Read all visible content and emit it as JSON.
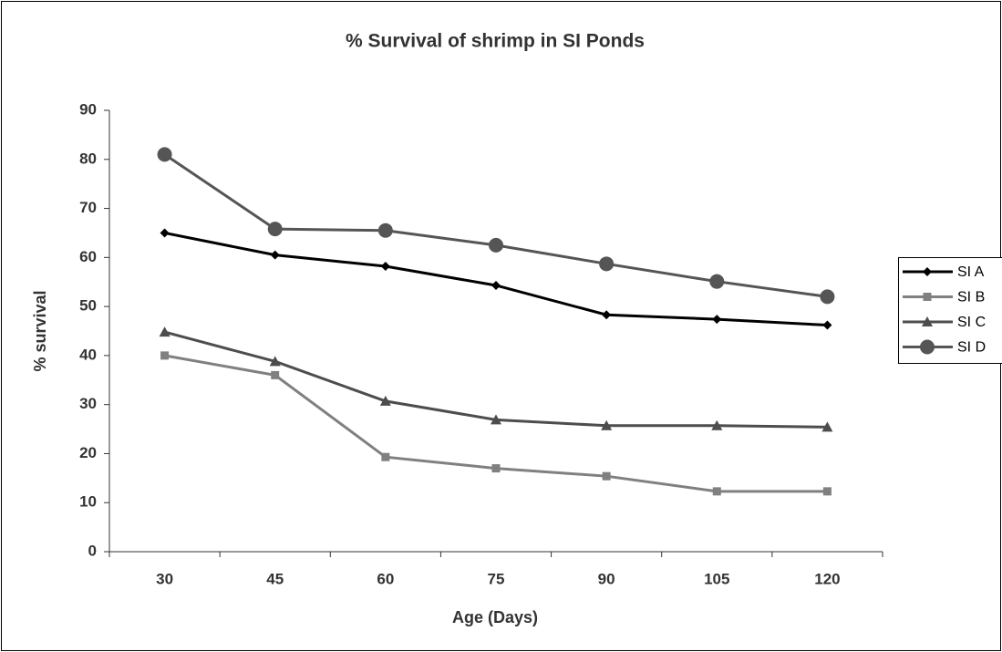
{
  "chart_data": {
    "type": "line",
    "title": "% Survival  of shrimp in SI Ponds",
    "x_label": "Age (Days)",
    "y_label": "% survival",
    "categories": [
      "30",
      "45",
      "60",
      "75",
      "90",
      "105",
      "120"
    ],
    "series": [
      {
        "name": "SI A",
        "color": "#000000",
        "marker": "diamond",
        "values": [
          65,
          60.5,
          58.2,
          54.3,
          48.3,
          47.4,
          46.2
        ]
      },
      {
        "name": "SI B",
        "color": "#808080",
        "marker": "square",
        "values": [
          40,
          36,
          19.3,
          17,
          15.4,
          12.3,
          12.3
        ]
      },
      {
        "name": "SI C",
        "color": "#4d4d4d",
        "marker": "triangle",
        "values": [
          44.8,
          38.8,
          30.7,
          26.9,
          25.7,
          25.7,
          25.4
        ]
      },
      {
        "name": "SI D",
        "color": "#555555",
        "marker": "circle",
        "values": [
          81,
          65.8,
          65.5,
          62.5,
          58.7,
          55.1,
          52
        ]
      }
    ],
    "ylim": [
      0,
      90
    ],
    "yticks": [
      0,
      10,
      20,
      30,
      40,
      50,
      60,
      70,
      80,
      90
    ],
    "grid": false,
    "legend": "right"
  }
}
